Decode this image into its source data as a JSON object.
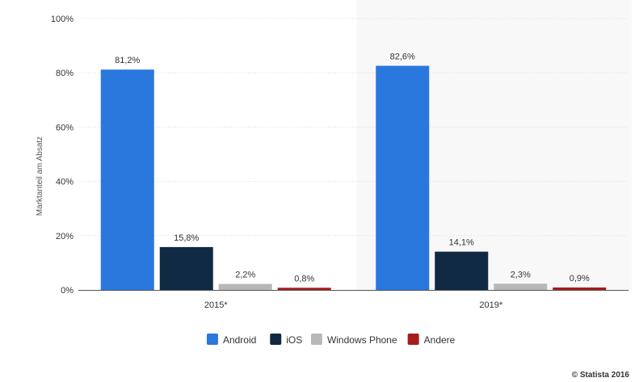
{
  "chart_data": {
    "type": "bar",
    "categories": [
      "2015*",
      "2019*"
    ],
    "series": [
      {
        "name": "Android",
        "values": [
          81.2,
          82.6
        ],
        "labels": [
          "81,2%",
          "82,6%"
        ],
        "color": "#2a77dd"
      },
      {
        "name": "iOS",
        "values": [
          15.8,
          14.1
        ],
        "labels": [
          "15,8%",
          "14,1%"
        ],
        "color": "#102a43"
      },
      {
        "name": "Windows Phone",
        "values": [
          2.2,
          2.3
        ],
        "labels": [
          "2,2%",
          "2,3%"
        ],
        "color": "#b8b8b8"
      },
      {
        "name": "Andere",
        "values": [
          0.8,
          0.9
        ],
        "labels": [
          "0,8%",
          "0,9%"
        ],
        "color": "#a51c1c"
      }
    ],
    "title": "",
    "xlabel": "",
    "ylabel": "Marktanteil am Absatz",
    "ylim": [
      0,
      100
    ],
    "yticks": [
      0,
      20,
      40,
      60,
      80,
      100
    ],
    "ytick_labels": [
      "0%",
      "20%",
      "40%",
      "60%",
      "80%",
      "100%"
    ],
    "grid": true,
    "legend_position": "bottom"
  },
  "credit": "© Statista 2016"
}
